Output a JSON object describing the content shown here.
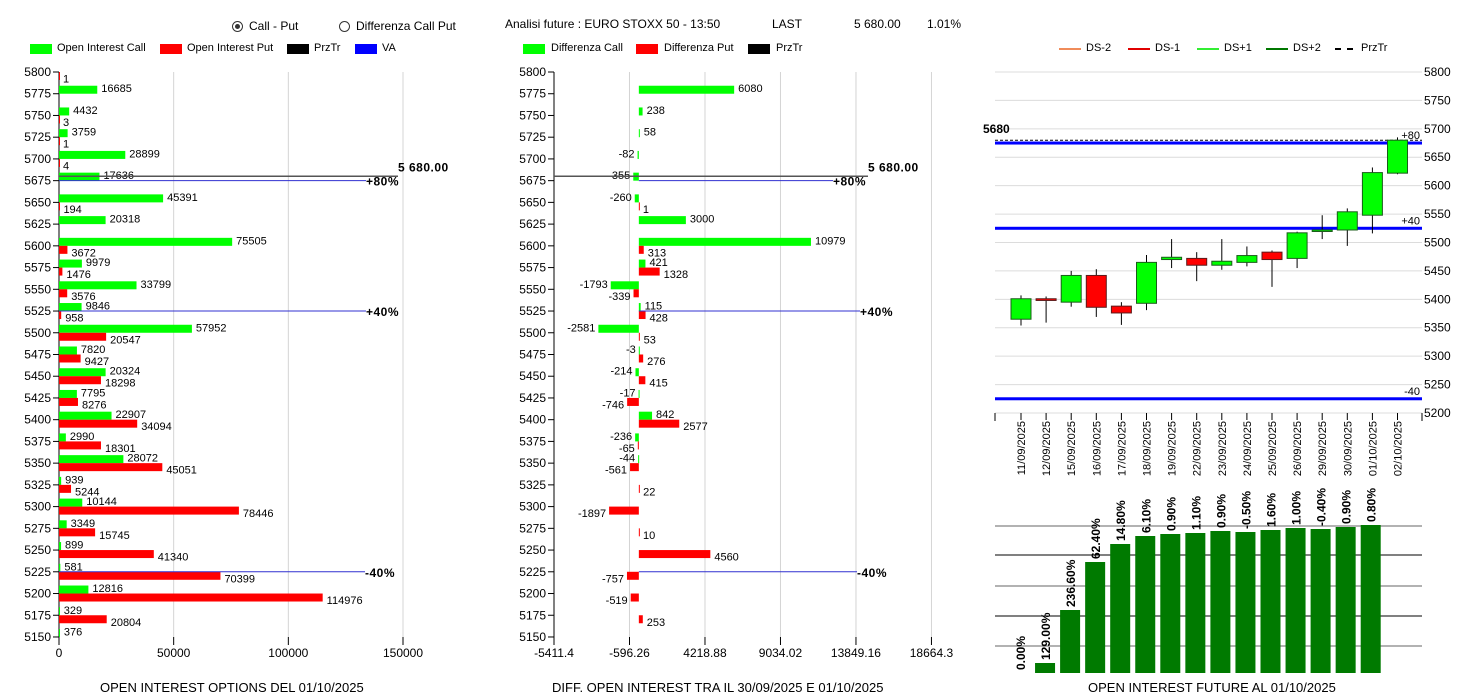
{
  "header": {
    "radio_call_put": "Call - Put",
    "radio_diff": "Differenza Call Put",
    "selected": "Call - Put",
    "title": "Analisi future : EURO STOXX 50 - 13:50",
    "last_label": "LAST",
    "last_value": "5 680.00",
    "change": "1.01%"
  },
  "colors": {
    "call": "#00ff00",
    "put": "#ff0000",
    "przTr": "#000000",
    "va": "#0000ff",
    "ds_minus2": "#f08c5a",
    "ds_minus1": "#e00000",
    "ds_plus1": "#33ee33",
    "ds_plus2": "#007700",
    "oi_future_bar": "#007a00"
  },
  "chart_data": [
    {
      "type": "bar",
      "orientation": "horizontal",
      "title": "OPEN INTEREST OPTIONS DEL 01/10/2025",
      "legend": [
        "Open Interest Call",
        "Open Interest Put",
        "PrzTr",
        "VA"
      ],
      "categories": [
        5800,
        5775,
        5750,
        5725,
        5700,
        5675,
        5650,
        5625,
        5600,
        5575,
        5550,
        5525,
        5500,
        5475,
        5450,
        5425,
        5400,
        5375,
        5350,
        5325,
        5300,
        5275,
        5250,
        5225,
        5200,
        5175,
        5150
      ],
      "series": [
        {
          "name": "Open Interest Call",
          "values": [
            null,
            16685,
            4432,
            3759,
            28899,
            17636,
            45391,
            20318,
            75505,
            9979,
            33799,
            9846,
            57952,
            7820,
            20324,
            7795,
            22907,
            2990,
            28072,
            939,
            10144,
            3349,
            899,
            581,
            12816,
            329,
            376
          ]
        },
        {
          "name": "Open Interest Put",
          "values": [
            1,
            null,
            3,
            1,
            4,
            null,
            194,
            null,
            3672,
            1476,
            3576,
            958,
            20547,
            9427,
            18298,
            8276,
            34094,
            18301,
            45051,
            5244,
            78446,
            15745,
            41340,
            70399,
            114976,
            20804,
            null
          ]
        }
      ],
      "xlim": [
        0,
        150000
      ],
      "xticks": [
        0,
        50000,
        100000,
        150000
      ],
      "grid": true,
      "reference_lines": [
        {
          "label": "5 680.00",
          "strike": 5680,
          "kind": "PrzTr"
        },
        {
          "label": "+80%",
          "strike": 5675,
          "kind": "VA"
        },
        {
          "label": "+40%",
          "strike": 5525,
          "kind": "VA"
        },
        {
          "label": "-40%",
          "strike": 5225,
          "kind": "VA"
        }
      ]
    },
    {
      "type": "bar",
      "orientation": "horizontal",
      "title": "DIFF. OPEN INTEREST TRA IL 30/09/2025 E 01/10/2025",
      "legend": [
        "Differenza Call",
        "Differenza Put",
        "PrzTr"
      ],
      "categories": [
        5800,
        5775,
        5750,
        5725,
        5700,
        5675,
        5650,
        5625,
        5600,
        5575,
        5550,
        5525,
        5500,
        5475,
        5450,
        5425,
        5400,
        5375,
        5350,
        5325,
        5300,
        5275,
        5250,
        5225,
        5200,
        5175,
        5150
      ],
      "series": [
        {
          "name": "Differenza Call",
          "values": [
            null,
            6080,
            238,
            58,
            -82,
            -355,
            -260,
            3000,
            10979,
            421,
            -1793,
            115,
            -2581,
            -3,
            -214,
            -17,
            842,
            -236,
            -44,
            null,
            null,
            null,
            null,
            null,
            null,
            null,
            null
          ]
        },
        {
          "name": "Differenza Put",
          "values": [
            null,
            null,
            null,
            null,
            null,
            null,
            1,
            null,
            313,
            1328,
            -339,
            428,
            53,
            276,
            415,
            -746,
            2577,
            -65,
            -561,
            22,
            -1897,
            10,
            4560,
            -757,
            -519,
            253,
            null
          ]
        }
      ],
      "xlim": [
        -5411.4,
        18664.3
      ],
      "xticks": [
        -5411.4,
        -596.26,
        4218.88,
        9034.02,
        13849.16,
        18664.3
      ],
      "grid": true,
      "reference_lines": [
        {
          "label": "5 680.00",
          "strike": 5680,
          "kind": "PrzTr"
        },
        {
          "label": "+80%",
          "strike": 5675,
          "kind": "VA"
        },
        {
          "label": "+40%",
          "strike": 5525,
          "kind": "VA"
        },
        {
          "label": "-40%",
          "strike": 5225,
          "kind": "VA"
        }
      ]
    },
    {
      "type": "candlestick",
      "legend": [
        "DS-2",
        "DS-1",
        "DS+1",
        "DS+2",
        "PrzTr"
      ],
      "dates": [
        "11/09/2025",
        "12/09/2025",
        "15/09/2025",
        "16/09/2025",
        "17/09/2025",
        "18/09/2025",
        "19/09/2025",
        "22/09/2025",
        "23/09/2025",
        "24/09/2025",
        "25/09/2025",
        "26/09/2025",
        "29/09/2025",
        "30/09/2025",
        "01/10/2025",
        "02/10/2025"
      ],
      "ohlc": [
        [
          5365,
          5407,
          5354,
          5401
        ],
        [
          5401,
          5405,
          5359,
          5398
        ],
        [
          5395,
          5450,
          5387,
          5442
        ],
        [
          5442,
          5453,
          5369,
          5386
        ],
        [
          5388,
          5395,
          5355,
          5376
        ],
        [
          5393,
          5478,
          5381,
          5465
        ],
        [
          5470,
          5506,
          5455,
          5474
        ],
        [
          5472,
          5483,
          5432,
          5460
        ],
        [
          5460,
          5506,
          5452,
          5467
        ],
        [
          5465,
          5493,
          5458,
          5477
        ],
        [
          5483,
          5486,
          5422,
          5470
        ],
        [
          5472,
          5519,
          5455,
          5517
        ],
        [
          5520,
          5548,
          5506,
          5522
        ],
        [
          5522,
          5560,
          5494,
          5554
        ],
        [
          5548,
          5632,
          5516,
          5623
        ],
        [
          5622,
          5685,
          5620,
          5680
        ]
      ],
      "ylim": [
        5200,
        5800
      ],
      "yticks": [
        5800,
        5750,
        5700,
        5650,
        5600,
        5550,
        5500,
        5450,
        5400,
        5350,
        5300,
        5250,
        5200
      ],
      "grid": true,
      "price_label": "5680",
      "przTr": 5680,
      "levels": [
        {
          "label": "+80",
          "value": 5675
        },
        {
          "label": "+40",
          "value": 5525
        },
        {
          "label": "-40",
          "value": 5225
        }
      ]
    },
    {
      "type": "bar",
      "title": "OPEN INTEREST FUTURE AL 01/10/2025",
      "labels": [
        "0.00%",
        "129.00%",
        "236.60%",
        "62.40%",
        "14.80%",
        "6.10%",
        "0.90%",
        "1.10%",
        "0.90%",
        "-0.50%",
        "1.60%",
        "1.00%",
        "-0.40%",
        "0.90%",
        "0.80%"
      ],
      "relative_values": [
        0,
        10,
        63,
        111,
        129,
        137,
        139,
        140,
        142,
        141,
        143,
        145,
        144,
        146,
        148
      ],
      "grid": true
    }
  ]
}
